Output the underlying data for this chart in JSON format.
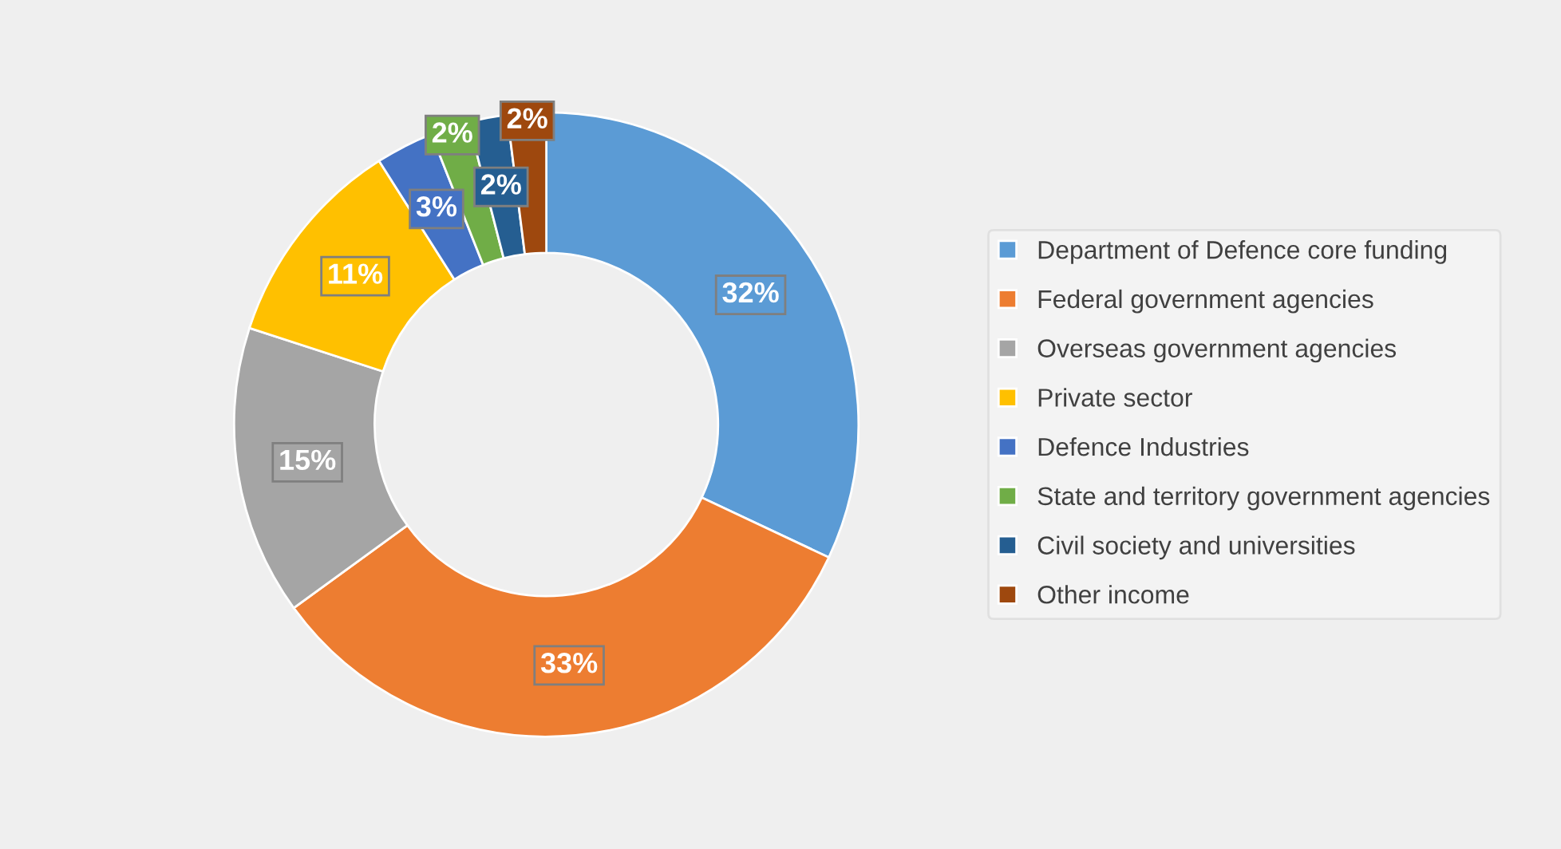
{
  "chart_data": {
    "type": "donut",
    "categories": [
      "Department of Defence core funding",
      "Federal government agencies",
      "Overseas government agencies",
      "Private sector",
      "Defence Industries",
      "State and territory government agencies",
      "Civil society and universities",
      "Other income"
    ],
    "values": [
      32,
      33,
      15,
      11,
      3,
      2,
      2,
      2
    ],
    "colors": [
      "#5b9bd5",
      "#ed7d31",
      "#a5a5a5",
      "#ffc000",
      "#4472c4",
      "#70ad47",
      "#255e91",
      "#9e480e"
    ],
    "value_labels": [
      "32%",
      "33%",
      "15%",
      "11%",
      "3%",
      "2%",
      "2%",
      "2%"
    ],
    "legend": "right"
  }
}
